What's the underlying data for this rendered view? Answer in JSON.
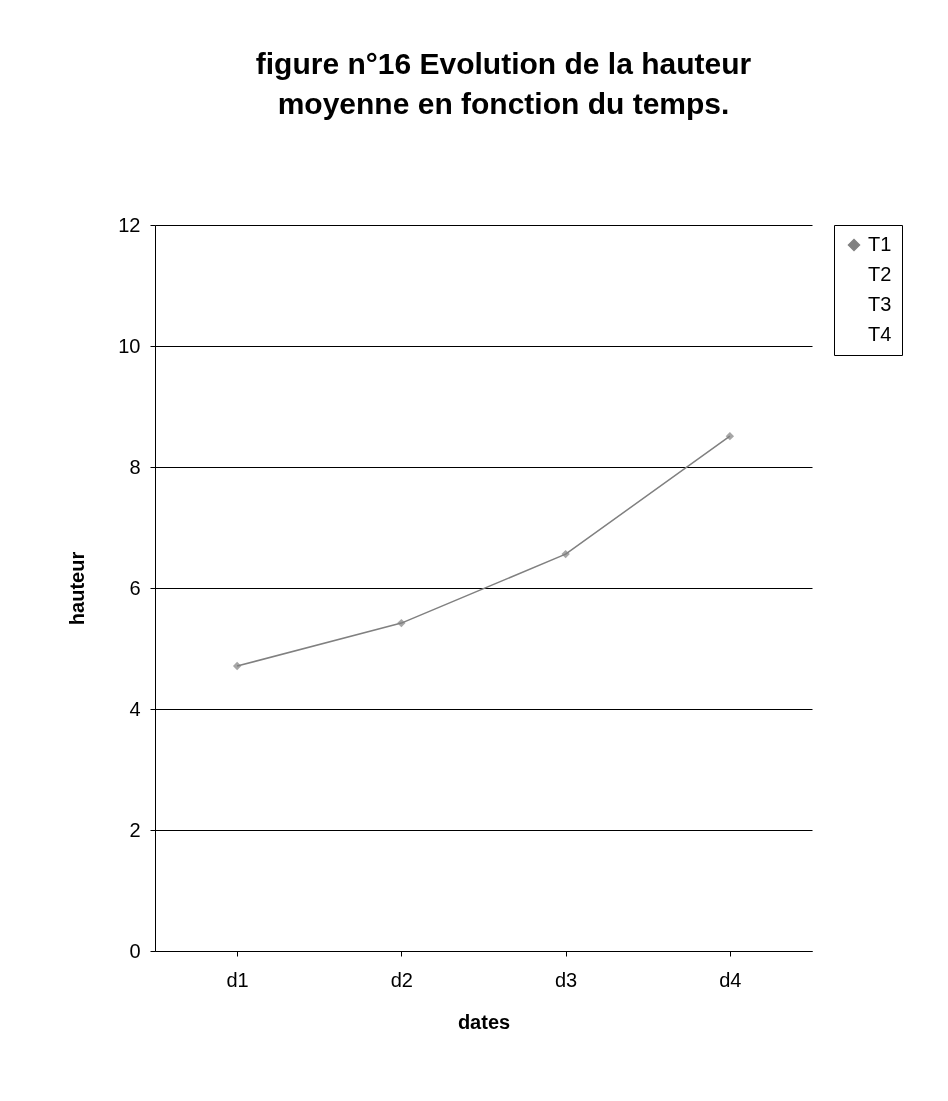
{
  "chart_data": {
    "type": "line",
    "title": "figure n°16   Evolution de la hauteur moyenne en fonction du temps.",
    "xlabel": "dates",
    "ylabel": "hauteur",
    "categories": [
      "d1",
      "d2",
      "d3",
      "d4"
    ],
    "series": [
      {
        "name": "T1",
        "color": "#808080",
        "values": [
          4.71,
          5.42,
          6.56,
          8.51
        ]
      },
      {
        "name": "T2",
        "values": [
          null,
          null,
          null,
          null
        ]
      },
      {
        "name": "T3",
        "values": [
          null,
          null,
          null,
          null
        ]
      },
      {
        "name": "T4",
        "values": [
          null,
          null,
          null,
          null
        ]
      }
    ],
    "ylim": [
      0,
      12
    ],
    "yticks": [
      0,
      2,
      4,
      6,
      8,
      10,
      12
    ],
    "grid": "y",
    "legend": "right",
    "marker": "diamond",
    "line_style": "solid"
  }
}
